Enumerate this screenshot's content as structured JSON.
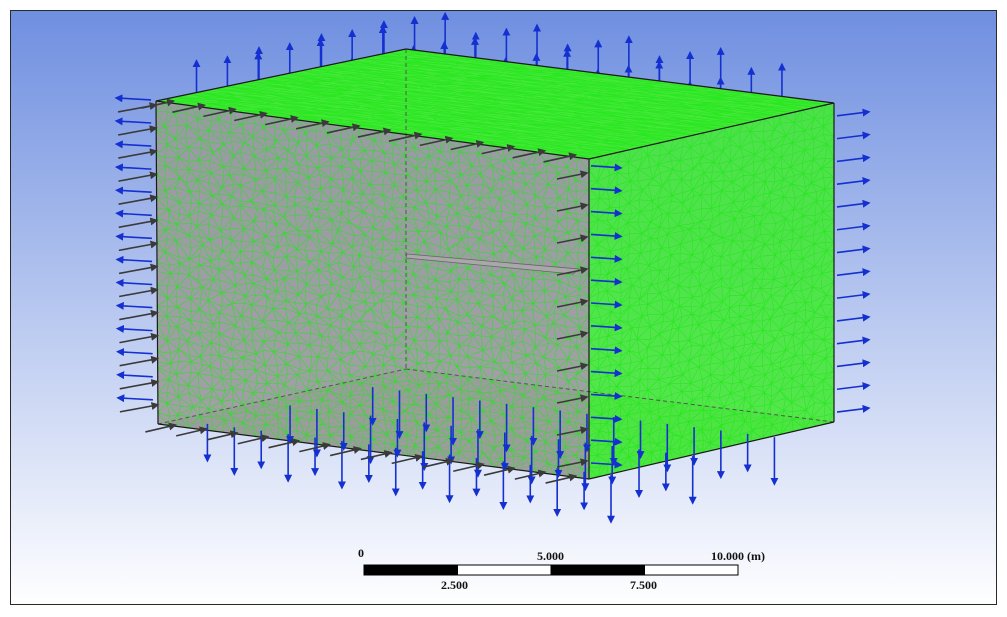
{
  "viewport": {
    "background_top": "#6f8fe0",
    "background_bottom": "#ffffff"
  },
  "geometry": {
    "face_side_color": "#9a9a9a",
    "face_top_color": "#46e83a",
    "mesh_color": "#22e61a",
    "edge_color": "#1a1a1a",
    "plate_color": "#a8a8a8"
  },
  "arrows": {
    "blue_color": "#1530d0",
    "dark_color": "#3a3a3a"
  },
  "scale_bar": {
    "unit": "(m)",
    "top_labels": [
      "0",
      "5.000",
      "10.000 (m)"
    ],
    "bottom_labels": [
      "2.500",
      "7.500"
    ]
  }
}
